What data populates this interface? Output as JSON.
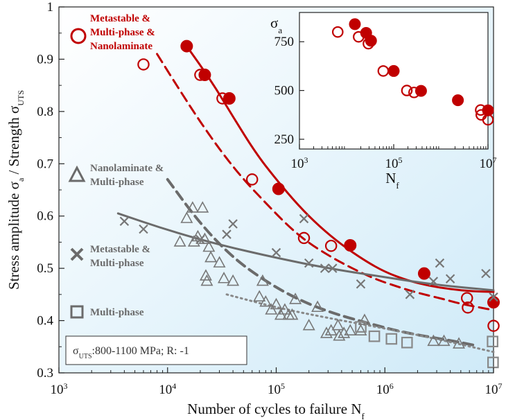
{
  "chart_data": [
    {
      "type": "scatter",
      "xscale": "log",
      "xlim": [
        1000,
        10000000
      ],
      "ylim": [
        0.3,
        1.0
      ],
      "xlabel": "Number of cycles to failure N",
      "xlabel_sub": "f",
      "ylabel": "Stress amplitude σa / Strength σUTS",
      "xticks": [
        {
          "base": "10",
          "exp": "3",
          "value": 1000
        },
        {
          "base": "10",
          "exp": "4",
          "value": 10000
        },
        {
          "base": "10",
          "exp": "5",
          "value": 100000
        },
        {
          "base": "10",
          "exp": "6",
          "value": 1000000
        },
        {
          "base": "10",
          "exp": "7",
          "value": 10000000
        }
      ],
      "yticks": [
        "0.3",
        "0.4",
        "0.5",
        "0.6",
        "0.7",
        "0.8",
        "0.9",
        "1"
      ],
      "annotation": {
        "prefix": "σ",
        "sub": "UTS",
        "text": ":800-1100 MPa; R: -1"
      },
      "legend": [
        {
          "lines": [
            "Metastable &",
            "Multi-phase &",
            "Nanolaminate"
          ],
          "marker": "circle",
          "color": "#c00000"
        },
        {
          "lines": [
            "Nanolaminate &",
            "Multi-phase"
          ],
          "marker": "triangle",
          "color": "#6b6b6b"
        },
        {
          "lines": [
            "Metastable &",
            "Multi-phase"
          ],
          "marker": "cross",
          "color": "#6b6b6b"
        },
        {
          "lines": [
            "Multi-phase"
          ],
          "marker": "square",
          "color": "#6b6b6b"
        }
      ],
      "series": [
        {
          "marker": "circle-filled",
          "color": "#c00000",
          "points": [
            [
              15000,
              0.925
            ],
            [
              22000,
              0.87
            ],
            [
              37000,
              0.825
            ],
            [
              105000,
              0.652
            ],
            [
              480000,
              0.544
            ],
            [
              2300000,
              0.49
            ],
            [
              10000000,
              0.435
            ]
          ]
        },
        {
          "marker": "circle-open",
          "color": "#c00000",
          "points": [
            [
              6000,
              0.89
            ],
            [
              20000,
              0.87
            ],
            [
              32000,
              0.825
            ],
            [
              60000,
              0.67
            ],
            [
              180000,
              0.558
            ],
            [
              320000,
              0.543
            ],
            [
              5700000,
              0.443
            ],
            [
              5800000,
              0.425
            ],
            [
              10000000,
              0.39
            ]
          ]
        },
        {
          "marker": "triangle",
          "color": "#777777",
          "points": [
            [
              13000,
              0.55
            ],
            [
              15000,
              0.595
            ],
            [
              17000,
              0.615
            ],
            [
              17500,
              0.55
            ],
            [
              19000,
              0.56
            ],
            [
              21000,
              0.615
            ],
            [
              22000,
              0.555
            ],
            [
              22500,
              0.485
            ],
            [
              23000,
              0.475
            ],
            [
              24000,
              0.54
            ],
            [
              25000,
              0.52
            ],
            [
              30000,
              0.51
            ],
            [
              33000,
              0.48
            ],
            [
              40000,
              0.475
            ],
            [
              70000,
              0.445
            ],
            [
              75000,
              0.475
            ],
            [
              80000,
              0.435
            ],
            [
              90000,
              0.42
            ],
            [
              100000,
              0.43
            ],
            [
              110000,
              0.41
            ],
            [
              120000,
              0.42
            ],
            [
              130000,
              0.41
            ],
            [
              140000,
              0.41
            ],
            [
              150000,
              0.44
            ],
            [
              200000,
              0.39
            ],
            [
              240000,
              0.425
            ],
            [
              290000,
              0.375
            ],
            [
              320000,
              0.38
            ],
            [
              370000,
              0.39
            ],
            [
              380000,
              0.37
            ],
            [
              420000,
              0.375
            ],
            [
              480000,
              0.38
            ],
            [
              600000,
              0.38
            ],
            [
              650000,
              0.4
            ],
            [
              2800000,
              0.36
            ],
            [
              3500000,
              0.36
            ],
            [
              4800000,
              0.355
            ]
          ]
        },
        {
          "marker": "cross",
          "color": "#777777",
          "points": [
            [
              4000,
              0.59
            ],
            [
              6000,
              0.575
            ],
            [
              20000,
              0.555
            ],
            [
              35000,
              0.565
            ],
            [
              40000,
              0.585
            ],
            [
              100000,
              0.53
            ],
            [
              180000,
              0.595
            ],
            [
              200000,
              0.51
            ],
            [
              280000,
              0.5
            ],
            [
              330000,
              0.5
            ],
            [
              600000,
              0.47
            ],
            [
              1700000,
              0.45
            ],
            [
              2800000,
              0.475
            ],
            [
              3200000,
              0.51
            ],
            [
              4000000,
              0.48
            ],
            [
              8500000,
              0.49
            ],
            [
              10000000,
              0.445
            ]
          ]
        },
        {
          "marker": "square",
          "color": "#888888",
          "points": [
            [
              600000,
              0.388
            ],
            [
              800000,
              0.37
            ],
            [
              1150000,
              0.365
            ],
            [
              1600000,
              0.358
            ],
            [
              9800000,
              0.36
            ],
            [
              9900000,
              0.32
            ]
          ]
        }
      ],
      "fits": [
        {
          "style": "solid",
          "color": "#c00000",
          "width": 3,
          "points": [
            [
              15000,
              0.925
            ],
            [
              25000,
              0.86
            ],
            [
              40000,
              0.79
            ],
            [
              65000,
              0.72
            ],
            [
              100000,
              0.67
            ],
            [
              160000,
              0.62
            ],
            [
              250000,
              0.58
            ],
            [
              400000,
              0.545
            ],
            [
              650000,
              0.515
            ],
            [
              1000000,
              0.493
            ],
            [
              1600000,
              0.477
            ],
            [
              2500000,
              0.467
            ],
            [
              4000000,
              0.46
            ],
            [
              6500000,
              0.456
            ],
            [
              10000000,
              0.455
            ]
          ]
        },
        {
          "style": "dash",
          "color": "#c00000",
          "width": 3,
          "points": [
            [
              8000,
              0.91
            ],
            [
              13000,
              0.84
            ],
            [
              20000,
              0.78
            ],
            [
              32000,
              0.72
            ],
            [
              50000,
              0.67
            ],
            [
              80000,
              0.625
            ],
            [
              130000,
              0.58
            ],
            [
              200000,
              0.548
            ],
            [
              330000,
              0.52
            ],
            [
              500000,
              0.5
            ],
            [
              800000,
              0.48
            ],
            [
              1300000,
              0.465
            ],
            [
              2000000,
              0.453
            ],
            [
              3200000,
              0.443
            ],
            [
              5000000,
              0.432
            ],
            [
              7500000,
              0.425
            ],
            [
              10000000,
              0.42
            ]
          ]
        },
        {
          "style": "solid",
          "color": "#6b6b6b",
          "width": 3,
          "points": [
            [
              3500.0,
              0.605
            ],
            [
              10000,
              0.573
            ],
            [
              30000,
              0.545
            ],
            [
              100000,
              0.52
            ],
            [
              300000,
              0.5
            ],
            [
              1000000,
              0.483
            ],
            [
              3000000,
              0.468
            ],
            [
              10000000,
              0.458
            ]
          ]
        },
        {
          "style": "dash",
          "color": "#6b6b6b",
          "width": 4,
          "points": [
            [
              10000,
              0.67
            ],
            [
              20000,
              0.585
            ],
            [
              40000,
              0.52
            ],
            [
              80000,
              0.475
            ],
            [
              160000,
              0.44
            ],
            [
              320000,
              0.415
            ],
            [
              700000,
              0.395
            ],
            [
              1500000,
              0.377
            ],
            [
              4000000,
              0.362
            ],
            [
              7000000,
              0.352
            ]
          ]
        },
        {
          "style": "dot",
          "color": "#888888",
          "width": 3,
          "points": [
            [
              35000,
              0.45
            ],
            [
              100000,
              0.425
            ],
            [
              300000,
              0.405
            ],
            [
              1000000,
              0.385
            ],
            [
              3000000,
              0.365
            ],
            [
              10000000,
              0.34
            ]
          ]
        }
      ]
    },
    {
      "type": "scatter",
      "xscale": "log",
      "xlim": [
        1000,
        10000000
      ],
      "ylim": [
        200,
        900
      ],
      "xlabel": "N",
      "xlabel_sub": "f",
      "ylabel": "σ",
      "ylabel_sub": "a",
      "xticks": [
        {
          "base": "10",
          "exp": "3",
          "value": 1000
        },
        {
          "base": "10",
          "exp": "5",
          "value": 100000
        },
        {
          "base": "10",
          "exp": "7",
          "value": 10000000
        }
      ],
      "yticks": [
        {
          "label": "250",
          "value": 250
        },
        {
          "label": "500",
          "value": 500
        },
        {
          "label": "750",
          "value": 750
        }
      ],
      "series": [
        {
          "marker": "circle-filled",
          "color": "#c00000",
          "points": [
            [
              15000,
              840
            ],
            [
              26000,
              795
            ],
            [
              33000,
              755
            ],
            [
              100000,
              600
            ],
            [
              380000,
              498
            ],
            [
              2300000,
              450
            ],
            [
              10000000,
              398
            ]
          ]
        },
        {
          "marker": "circle-open",
          "color": "#c00000",
          "points": [
            [
              6500,
              800
            ],
            [
              18000,
              775
            ],
            [
              29000,
              740
            ],
            [
              60000,
              600
            ],
            [
              190000,
              500
            ],
            [
              270000,
              490
            ],
            [
              7000000,
              400
            ],
            [
              7200000,
              375
            ],
            [
              10000000,
              350
            ]
          ]
        }
      ]
    }
  ]
}
